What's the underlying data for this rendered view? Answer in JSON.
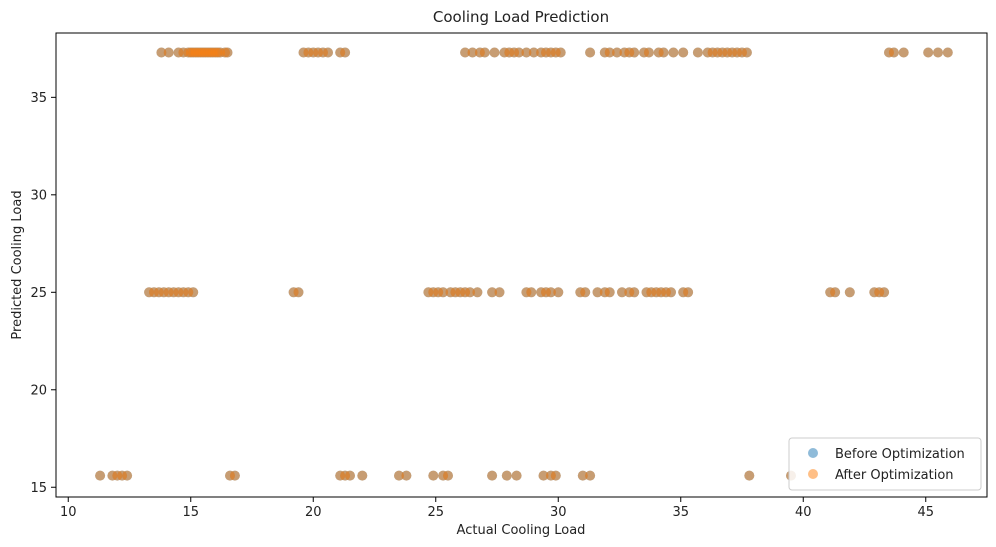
{
  "chart_data": {
    "type": "scatter",
    "title": "Cooling Load Prediction",
    "xlabel": "Actual Cooling Load",
    "ylabel": "Predicted Cooling Load",
    "xlim": [
      9.5,
      47.5
    ],
    "ylim": [
      14.5,
      38.3
    ],
    "xticks": [
      10,
      15,
      20,
      25,
      30,
      35,
      40,
      45
    ],
    "yticks": [
      15,
      20,
      25,
      30,
      35
    ],
    "legend_position": "lower-right",
    "colors": {
      "before": "#1f77b4",
      "after": "#ff7f0e",
      "axis": "#000000",
      "text": "#222222"
    },
    "series": [
      {
        "name": "Before Optimization",
        "color": "#1f77b4",
        "points": [
          [
            13.8,
            37.3
          ],
          [
            14.1,
            37.3
          ],
          [
            14.5,
            37.3
          ],
          [
            14.7,
            37.3
          ],
          [
            14.9,
            37.3
          ],
          [
            15.0,
            37.3
          ],
          [
            15.1,
            37.3
          ],
          [
            15.2,
            37.3
          ],
          [
            15.3,
            37.3
          ],
          [
            15.4,
            37.3
          ],
          [
            15.5,
            37.3
          ],
          [
            15.6,
            37.3
          ],
          [
            15.7,
            37.3
          ],
          [
            15.8,
            37.3
          ],
          [
            15.9,
            37.3
          ],
          [
            16.0,
            37.3
          ],
          [
            16.1,
            37.3
          ],
          [
            16.2,
            37.3
          ],
          [
            16.4,
            37.3
          ],
          [
            16.5,
            37.3
          ],
          [
            19.6,
            37.3
          ],
          [
            19.8,
            37.3
          ],
          [
            20.0,
            37.3
          ],
          [
            20.2,
            37.3
          ],
          [
            20.4,
            37.3
          ],
          [
            20.6,
            37.3
          ],
          [
            21.1,
            37.3
          ],
          [
            21.3,
            37.3
          ],
          [
            26.2,
            37.3
          ],
          [
            26.5,
            37.3
          ],
          [
            26.8,
            37.3
          ],
          [
            27.0,
            37.3
          ],
          [
            27.4,
            37.3
          ],
          [
            27.8,
            37.3
          ],
          [
            28.0,
            37.3
          ],
          [
            28.2,
            37.3
          ],
          [
            28.4,
            37.3
          ],
          [
            28.7,
            37.3
          ],
          [
            29.0,
            37.3
          ],
          [
            29.3,
            37.3
          ],
          [
            29.5,
            37.3
          ],
          [
            29.7,
            37.3
          ],
          [
            29.9,
            37.3
          ],
          [
            30.1,
            37.3
          ],
          [
            31.3,
            37.3
          ],
          [
            31.9,
            37.3
          ],
          [
            32.1,
            37.3
          ],
          [
            32.4,
            37.3
          ],
          [
            32.7,
            37.3
          ],
          [
            32.9,
            37.3
          ],
          [
            33.1,
            37.3
          ],
          [
            33.5,
            37.3
          ],
          [
            33.7,
            37.3
          ],
          [
            34.1,
            37.3
          ],
          [
            34.3,
            37.3
          ],
          [
            34.7,
            37.3
          ],
          [
            35.1,
            37.3
          ],
          [
            35.7,
            37.3
          ],
          [
            36.1,
            37.3
          ],
          [
            36.3,
            37.3
          ],
          [
            36.5,
            37.3
          ],
          [
            36.7,
            37.3
          ],
          [
            36.9,
            37.3
          ],
          [
            37.1,
            37.3
          ],
          [
            37.3,
            37.3
          ],
          [
            37.5,
            37.3
          ],
          [
            37.7,
            37.3
          ],
          [
            43.5,
            37.3
          ],
          [
            43.7,
            37.3
          ],
          [
            44.1,
            37.3
          ],
          [
            45.1,
            37.3
          ],
          [
            45.5,
            37.3
          ],
          [
            45.9,
            37.3
          ],
          [
            13.3,
            25.0
          ],
          [
            13.5,
            25.0
          ],
          [
            13.7,
            25.0
          ],
          [
            13.9,
            25.0
          ],
          [
            14.1,
            25.0
          ],
          [
            14.3,
            25.0
          ],
          [
            14.5,
            25.0
          ],
          [
            14.7,
            25.0
          ],
          [
            14.9,
            25.0
          ],
          [
            15.1,
            25.0
          ],
          [
            19.2,
            25.0
          ],
          [
            19.4,
            25.0
          ],
          [
            24.7,
            25.0
          ],
          [
            24.9,
            25.0
          ],
          [
            25.1,
            25.0
          ],
          [
            25.3,
            25.0
          ],
          [
            25.6,
            25.0
          ],
          [
            25.8,
            25.0
          ],
          [
            26.0,
            25.0
          ],
          [
            26.2,
            25.0
          ],
          [
            26.4,
            25.0
          ],
          [
            26.7,
            25.0
          ],
          [
            27.3,
            25.0
          ],
          [
            27.6,
            25.0
          ],
          [
            28.7,
            25.0
          ],
          [
            28.9,
            25.0
          ],
          [
            29.3,
            25.0
          ],
          [
            29.5,
            25.0
          ],
          [
            29.7,
            25.0
          ],
          [
            30.0,
            25.0
          ],
          [
            30.9,
            25.0
          ],
          [
            31.1,
            25.0
          ],
          [
            31.6,
            25.0
          ],
          [
            31.9,
            25.0
          ],
          [
            32.1,
            25.0
          ],
          [
            32.6,
            25.0
          ],
          [
            32.9,
            25.0
          ],
          [
            33.1,
            25.0
          ],
          [
            33.6,
            25.0
          ],
          [
            33.8,
            25.0
          ],
          [
            34.0,
            25.0
          ],
          [
            34.2,
            25.0
          ],
          [
            34.4,
            25.0
          ],
          [
            34.6,
            25.0
          ],
          [
            35.1,
            25.0
          ],
          [
            35.3,
            25.0
          ],
          [
            41.1,
            25.0
          ],
          [
            41.3,
            25.0
          ],
          [
            41.9,
            25.0
          ],
          [
            42.9,
            25.0
          ],
          [
            43.1,
            25.0
          ],
          [
            43.3,
            25.0
          ],
          [
            11.3,
            15.6
          ],
          [
            11.8,
            15.6
          ],
          [
            12.0,
            15.6
          ],
          [
            12.2,
            15.6
          ],
          [
            12.4,
            15.6
          ],
          [
            16.6,
            15.6
          ],
          [
            16.8,
            15.6
          ],
          [
            21.1,
            15.6
          ],
          [
            21.3,
            15.6
          ],
          [
            21.5,
            15.6
          ],
          [
            22.0,
            15.6
          ],
          [
            23.5,
            15.6
          ],
          [
            23.8,
            15.6
          ],
          [
            24.9,
            15.6
          ],
          [
            25.3,
            15.6
          ],
          [
            25.5,
            15.6
          ],
          [
            27.3,
            15.6
          ],
          [
            27.9,
            15.6
          ],
          [
            28.3,
            15.6
          ],
          [
            29.4,
            15.6
          ],
          [
            29.7,
            15.6
          ],
          [
            29.9,
            15.6
          ],
          [
            31.0,
            15.6
          ],
          [
            31.3,
            15.6
          ],
          [
            37.8,
            15.6
          ],
          [
            39.5,
            15.6
          ]
        ]
      },
      {
        "name": "After Optimization",
        "color": "#ff7f0e",
        "points": [
          [
            13.8,
            37.3
          ],
          [
            14.1,
            37.3
          ],
          [
            14.5,
            37.3
          ],
          [
            14.7,
            37.3
          ],
          [
            14.9,
            37.3
          ],
          [
            15.0,
            37.3
          ],
          [
            15.1,
            37.3
          ],
          [
            15.2,
            37.3
          ],
          [
            15.3,
            37.3
          ],
          [
            15.4,
            37.3
          ],
          [
            15.5,
            37.3
          ],
          [
            15.6,
            37.3
          ],
          [
            15.7,
            37.3
          ],
          [
            15.8,
            37.3
          ],
          [
            15.9,
            37.3
          ],
          [
            16.0,
            37.3
          ],
          [
            16.1,
            37.3
          ],
          [
            16.2,
            37.3
          ],
          [
            16.4,
            37.3
          ],
          [
            16.5,
            37.3
          ],
          [
            19.6,
            37.3
          ],
          [
            19.8,
            37.3
          ],
          [
            20.0,
            37.3
          ],
          [
            20.2,
            37.3
          ],
          [
            20.4,
            37.3
          ],
          [
            20.6,
            37.3
          ],
          [
            21.1,
            37.3
          ],
          [
            21.3,
            37.3
          ],
          [
            26.2,
            37.3
          ],
          [
            26.5,
            37.3
          ],
          [
            26.8,
            37.3
          ],
          [
            27.0,
            37.3
          ],
          [
            27.4,
            37.3
          ],
          [
            27.8,
            37.3
          ],
          [
            28.0,
            37.3
          ],
          [
            28.2,
            37.3
          ],
          [
            28.4,
            37.3
          ],
          [
            28.7,
            37.3
          ],
          [
            29.0,
            37.3
          ],
          [
            29.3,
            37.3
          ],
          [
            29.5,
            37.3
          ],
          [
            29.7,
            37.3
          ],
          [
            29.9,
            37.3
          ],
          [
            30.1,
            37.3
          ],
          [
            31.3,
            37.3
          ],
          [
            31.9,
            37.3
          ],
          [
            32.1,
            37.3
          ],
          [
            32.4,
            37.3
          ],
          [
            32.7,
            37.3
          ],
          [
            32.9,
            37.3
          ],
          [
            33.1,
            37.3
          ],
          [
            33.5,
            37.3
          ],
          [
            33.7,
            37.3
          ],
          [
            34.1,
            37.3
          ],
          [
            34.3,
            37.3
          ],
          [
            34.7,
            37.3
          ],
          [
            35.1,
            37.3
          ],
          [
            35.7,
            37.3
          ],
          [
            36.1,
            37.3
          ],
          [
            36.3,
            37.3
          ],
          [
            36.5,
            37.3
          ],
          [
            36.7,
            37.3
          ],
          [
            36.9,
            37.3
          ],
          [
            37.1,
            37.3
          ],
          [
            37.3,
            37.3
          ],
          [
            37.5,
            37.3
          ],
          [
            37.7,
            37.3
          ],
          [
            43.5,
            37.3
          ],
          [
            43.7,
            37.3
          ],
          [
            44.1,
            37.3
          ],
          [
            45.1,
            37.3
          ],
          [
            45.5,
            37.3
          ],
          [
            45.9,
            37.3
          ],
          [
            13.3,
            25.0
          ],
          [
            13.5,
            25.0
          ],
          [
            13.7,
            25.0
          ],
          [
            13.9,
            25.0
          ],
          [
            14.1,
            25.0
          ],
          [
            14.3,
            25.0
          ],
          [
            14.5,
            25.0
          ],
          [
            14.7,
            25.0
          ],
          [
            14.9,
            25.0
          ],
          [
            15.1,
            25.0
          ],
          [
            19.2,
            25.0
          ],
          [
            19.4,
            25.0
          ],
          [
            24.7,
            25.0
          ],
          [
            24.9,
            25.0
          ],
          [
            25.1,
            25.0
          ],
          [
            25.3,
            25.0
          ],
          [
            25.6,
            25.0
          ],
          [
            25.8,
            25.0
          ],
          [
            26.0,
            25.0
          ],
          [
            26.2,
            25.0
          ],
          [
            26.4,
            25.0
          ],
          [
            26.7,
            25.0
          ],
          [
            27.3,
            25.0
          ],
          [
            27.6,
            25.0
          ],
          [
            28.7,
            25.0
          ],
          [
            28.9,
            25.0
          ],
          [
            29.3,
            25.0
          ],
          [
            29.5,
            25.0
          ],
          [
            29.7,
            25.0
          ],
          [
            30.0,
            25.0
          ],
          [
            30.9,
            25.0
          ],
          [
            31.1,
            25.0
          ],
          [
            31.6,
            25.0
          ],
          [
            31.9,
            25.0
          ],
          [
            32.1,
            25.0
          ],
          [
            32.6,
            25.0
          ],
          [
            32.9,
            25.0
          ],
          [
            33.1,
            25.0
          ],
          [
            33.6,
            25.0
          ],
          [
            33.8,
            25.0
          ],
          [
            34.0,
            25.0
          ],
          [
            34.2,
            25.0
          ],
          [
            34.4,
            25.0
          ],
          [
            34.6,
            25.0
          ],
          [
            35.1,
            25.0
          ],
          [
            35.3,
            25.0
          ],
          [
            41.1,
            25.0
          ],
          [
            41.3,
            25.0
          ],
          [
            41.9,
            25.0
          ],
          [
            42.9,
            25.0
          ],
          [
            43.1,
            25.0
          ],
          [
            43.3,
            25.0
          ],
          [
            11.3,
            15.6
          ],
          [
            11.8,
            15.6
          ],
          [
            12.0,
            15.6
          ],
          [
            12.2,
            15.6
          ],
          [
            12.4,
            15.6
          ],
          [
            16.6,
            15.6
          ],
          [
            16.8,
            15.6
          ],
          [
            21.1,
            15.6
          ],
          [
            21.3,
            15.6
          ],
          [
            21.5,
            15.6
          ],
          [
            22.0,
            15.6
          ],
          [
            23.5,
            15.6
          ],
          [
            23.8,
            15.6
          ],
          [
            24.9,
            15.6
          ],
          [
            25.3,
            15.6
          ],
          [
            25.5,
            15.6
          ],
          [
            27.3,
            15.6
          ],
          [
            27.9,
            15.6
          ],
          [
            28.3,
            15.6
          ],
          [
            29.4,
            15.6
          ],
          [
            29.7,
            15.6
          ],
          [
            29.9,
            15.6
          ],
          [
            31.0,
            15.6
          ],
          [
            31.3,
            15.6
          ],
          [
            37.8,
            15.6
          ],
          [
            39.5,
            15.6
          ]
        ]
      }
    ]
  }
}
